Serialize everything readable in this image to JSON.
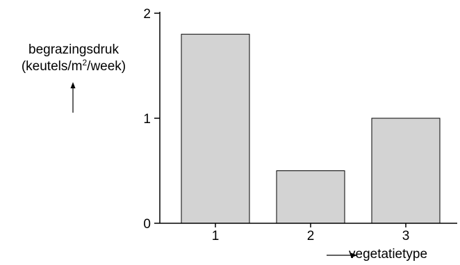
{
  "chart_data": {
    "type": "bar",
    "categories": [
      "1",
      "2",
      "3"
    ],
    "values": [
      1.8,
      0.5,
      1.0
    ],
    "xlabel": "vegetatietype",
    "ylabel": {
      "line1": "begrazingsdruk",
      "line2_before": "(keutels/m",
      "line2_sup": "2",
      "line2_after": "/week)"
    },
    "ylim": [
      0,
      2
    ],
    "yticks": [
      "0",
      "1",
      "2"
    ],
    "grid": false,
    "legend": "none",
    "colors": {
      "bar_fill": "#d3d3d3",
      "bar_stroke": "#000000",
      "axis": "#000000"
    }
  }
}
